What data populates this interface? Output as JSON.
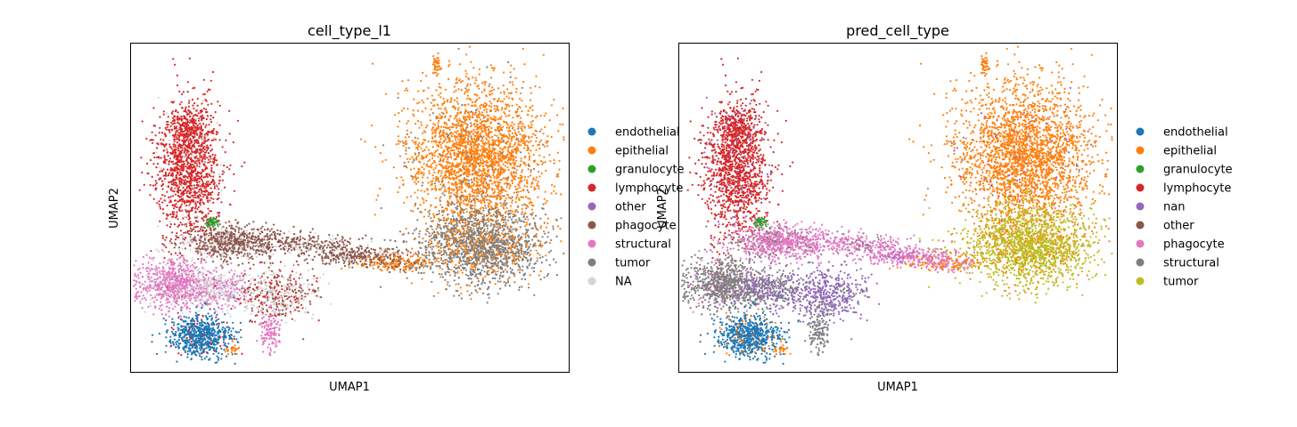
{
  "chart_data": [
    {
      "type": "scatter",
      "title": "cell_type_l1",
      "xlabel": "UMAP1",
      "ylabel": "UMAP2",
      "grid": false,
      "ticks": "none",
      "legend_placement": "right, outside",
      "legend": [
        {
          "name": "endothelial",
          "color": "#1f77b4"
        },
        {
          "name": "epithelial",
          "color": "#ff7f0e"
        },
        {
          "name": "granulocyte",
          "color": "#2ca02c"
        },
        {
          "name": "lymphocyte",
          "color": "#d62728"
        },
        {
          "name": "other",
          "color": "#9467bd"
        },
        {
          "name": "phagocyte",
          "color": "#8c564b"
        },
        {
          "name": "structural",
          "color": "#e377c2"
        },
        {
          "name": "tumor",
          "color": "#7f7f7f"
        },
        {
          "name": "NA",
          "color": "#d3d3d3"
        }
      ]
    },
    {
      "type": "scatter",
      "title": "pred_cell_type",
      "xlabel": "UMAP1",
      "ylabel": "UMAP2",
      "grid": false,
      "ticks": "none",
      "legend_placement": "right, outside",
      "legend": [
        {
          "name": "endothelial",
          "color": "#1f77b4"
        },
        {
          "name": "epithelial",
          "color": "#ff7f0e"
        },
        {
          "name": "granulocyte",
          "color": "#2ca02c"
        },
        {
          "name": "lymphocyte",
          "color": "#d62728"
        },
        {
          "name": "nan",
          "color": "#9467bd"
        },
        {
          "name": "other",
          "color": "#8c564b"
        },
        {
          "name": "phagocyte",
          "color": "#e377c2"
        },
        {
          "name": "structural",
          "color": "#7f7f7f"
        },
        {
          "name": "tumor",
          "color": "#bcbd22"
        }
      ]
    }
  ]
}
